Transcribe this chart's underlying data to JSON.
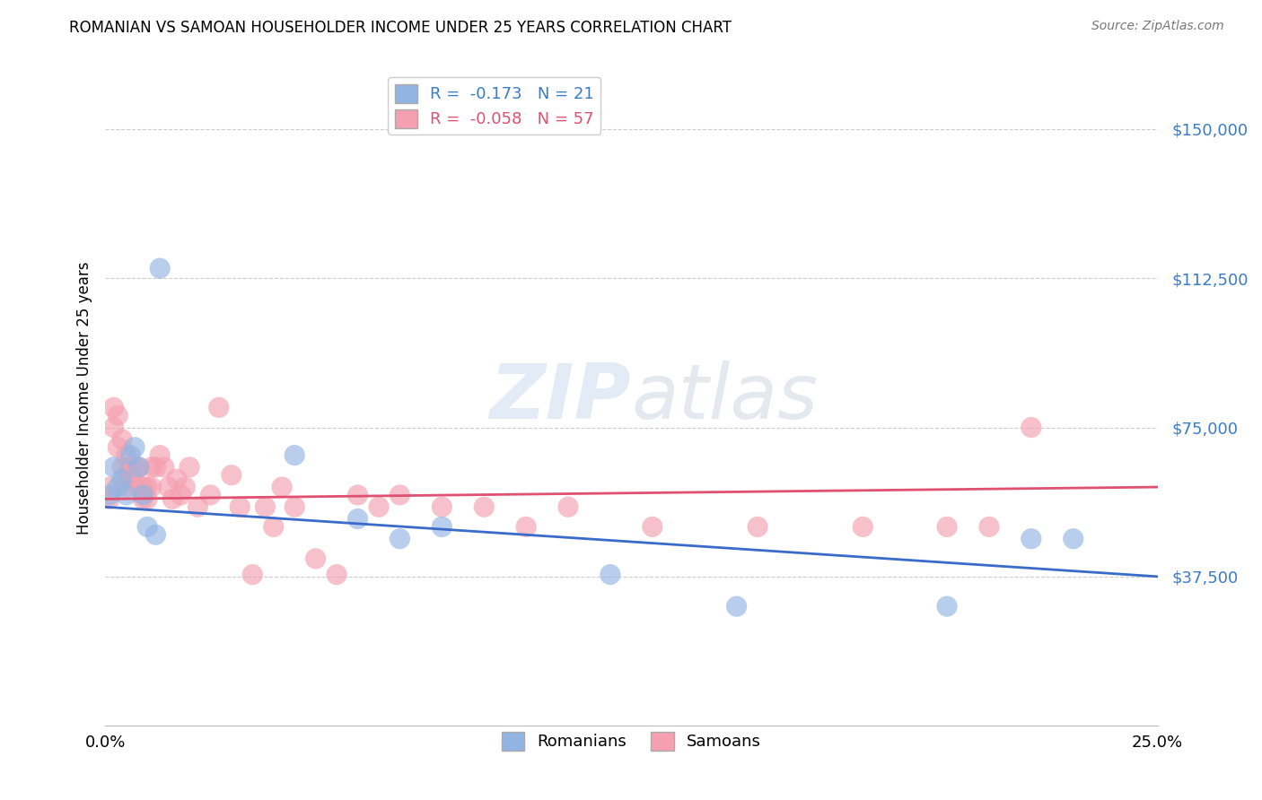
{
  "title": "ROMANIAN VS SAMOAN HOUSEHOLDER INCOME UNDER 25 YEARS CORRELATION CHART",
  "source": "Source: ZipAtlas.com",
  "ylabel": "Householder Income Under 25 years",
  "ytick_labels": [
    "$37,500",
    "$75,000",
    "$112,500",
    "$150,000"
  ],
  "ytick_values": [
    37500,
    75000,
    112500,
    150000
  ],
  "ymin": 0,
  "ymax": 165000,
  "xmin": 0.0,
  "xmax": 0.25,
  "romanian_R": -0.173,
  "romanian_N": 21,
  "samoan_R": -0.058,
  "samoan_N": 57,
  "romanian_color": "#92b4e3",
  "samoan_color": "#f4a0b0",
  "romanian_line_color": "#3a6bc9",
  "samoan_line_color": "#e05070",
  "romanian_x": [
    0.001,
    0.002,
    0.003,
    0.004,
    0.005,
    0.006,
    0.007,
    0.008,
    0.009,
    0.01,
    0.012,
    0.013,
    0.045,
    0.06,
    0.07,
    0.08,
    0.12,
    0.15,
    0.2,
    0.22,
    0.23
  ],
  "romanian_y": [
    58000,
    65000,
    60000,
    62000,
    58000,
    68000,
    70000,
    65000,
    58000,
    50000,
    48000,
    115000,
    68000,
    52000,
    47000,
    50000,
    38000,
    30000,
    30000,
    47000,
    47000
  ],
  "samoan_x": [
    0.001,
    0.001,
    0.002,
    0.002,
    0.003,
    0.003,
    0.004,
    0.004,
    0.005,
    0.005,
    0.005,
    0.006,
    0.006,
    0.007,
    0.007,
    0.008,
    0.008,
    0.009,
    0.009,
    0.01,
    0.01,
    0.011,
    0.011,
    0.012,
    0.013,
    0.014,
    0.015,
    0.016,
    0.017,
    0.018,
    0.019,
    0.02,
    0.022,
    0.025,
    0.027,
    0.03,
    0.032,
    0.035,
    0.038,
    0.04,
    0.042,
    0.045,
    0.05,
    0.055,
    0.06,
    0.065,
    0.07,
    0.08,
    0.09,
    0.1,
    0.11,
    0.13,
    0.155,
    0.18,
    0.2,
    0.21,
    0.22
  ],
  "samoan_y": [
    60000,
    57000,
    80000,
    75000,
    78000,
    70000,
    72000,
    65000,
    68000,
    63000,
    60000,
    65000,
    62000,
    65000,
    62000,
    65000,
    60000,
    60000,
    57000,
    60000,
    57000,
    65000,
    60000,
    65000,
    68000,
    65000,
    60000,
    57000,
    62000,
    58000,
    60000,
    65000,
    55000,
    58000,
    80000,
    63000,
    55000,
    38000,
    55000,
    50000,
    60000,
    55000,
    42000,
    38000,
    58000,
    55000,
    58000,
    55000,
    55000,
    50000,
    55000,
    50000,
    50000,
    50000,
    50000,
    50000,
    75000
  ]
}
